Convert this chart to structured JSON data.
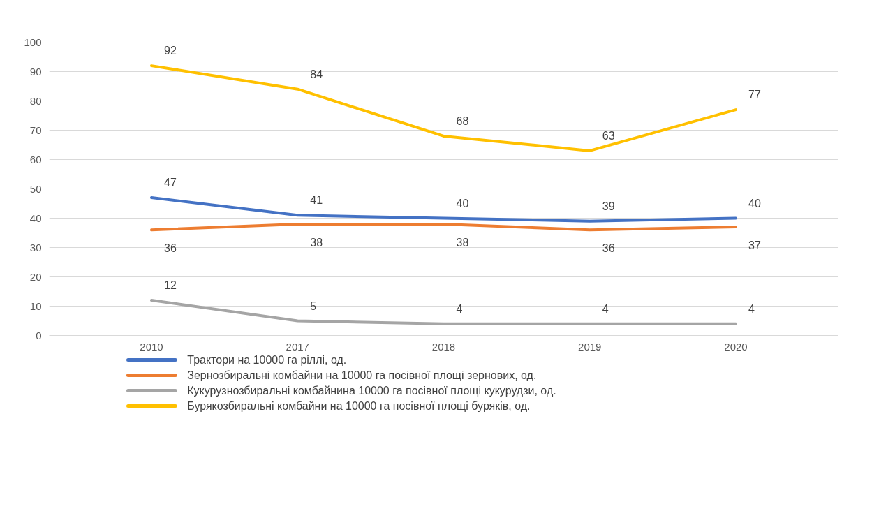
{
  "chart_data": {
    "type": "line",
    "categories": [
      "2010",
      "2017",
      "2018",
      "2019",
      "2020"
    ],
    "series": [
      {
        "name": "Трактори на 10000 га ріллі, од.",
        "color": "#4472c4",
        "values": [
          47,
          41,
          40,
          39,
          40
        ]
      },
      {
        "name": "Зернозбиральні комбайни на 10000 га посівної площі зернових, од.",
        "color": "#ed7d31",
        "values": [
          36,
          38,
          38,
          36,
          37
        ]
      },
      {
        "name": "Кукурузнозбиральні комбайнина 10000 га посівної площі кукурудзи, од.",
        "color": "#a5a5a5",
        "values": [
          12,
          5,
          4,
          4,
          4
        ]
      },
      {
        "name": "Бурякозбиральні комбайни на 10000 га посівної площі буряків, од.",
        "color": "#ffc000",
        "values": [
          92,
          84,
          68,
          63,
          77
        ]
      }
    ],
    "ylim": [
      0,
      100
    ],
    "yticks": [
      0,
      10,
      20,
      30,
      40,
      50,
      60,
      70,
      80,
      90,
      100
    ],
    "grid": "y",
    "legend": "bottom",
    "data_labels": true,
    "marker": "none",
    "line_style": "solid"
  }
}
